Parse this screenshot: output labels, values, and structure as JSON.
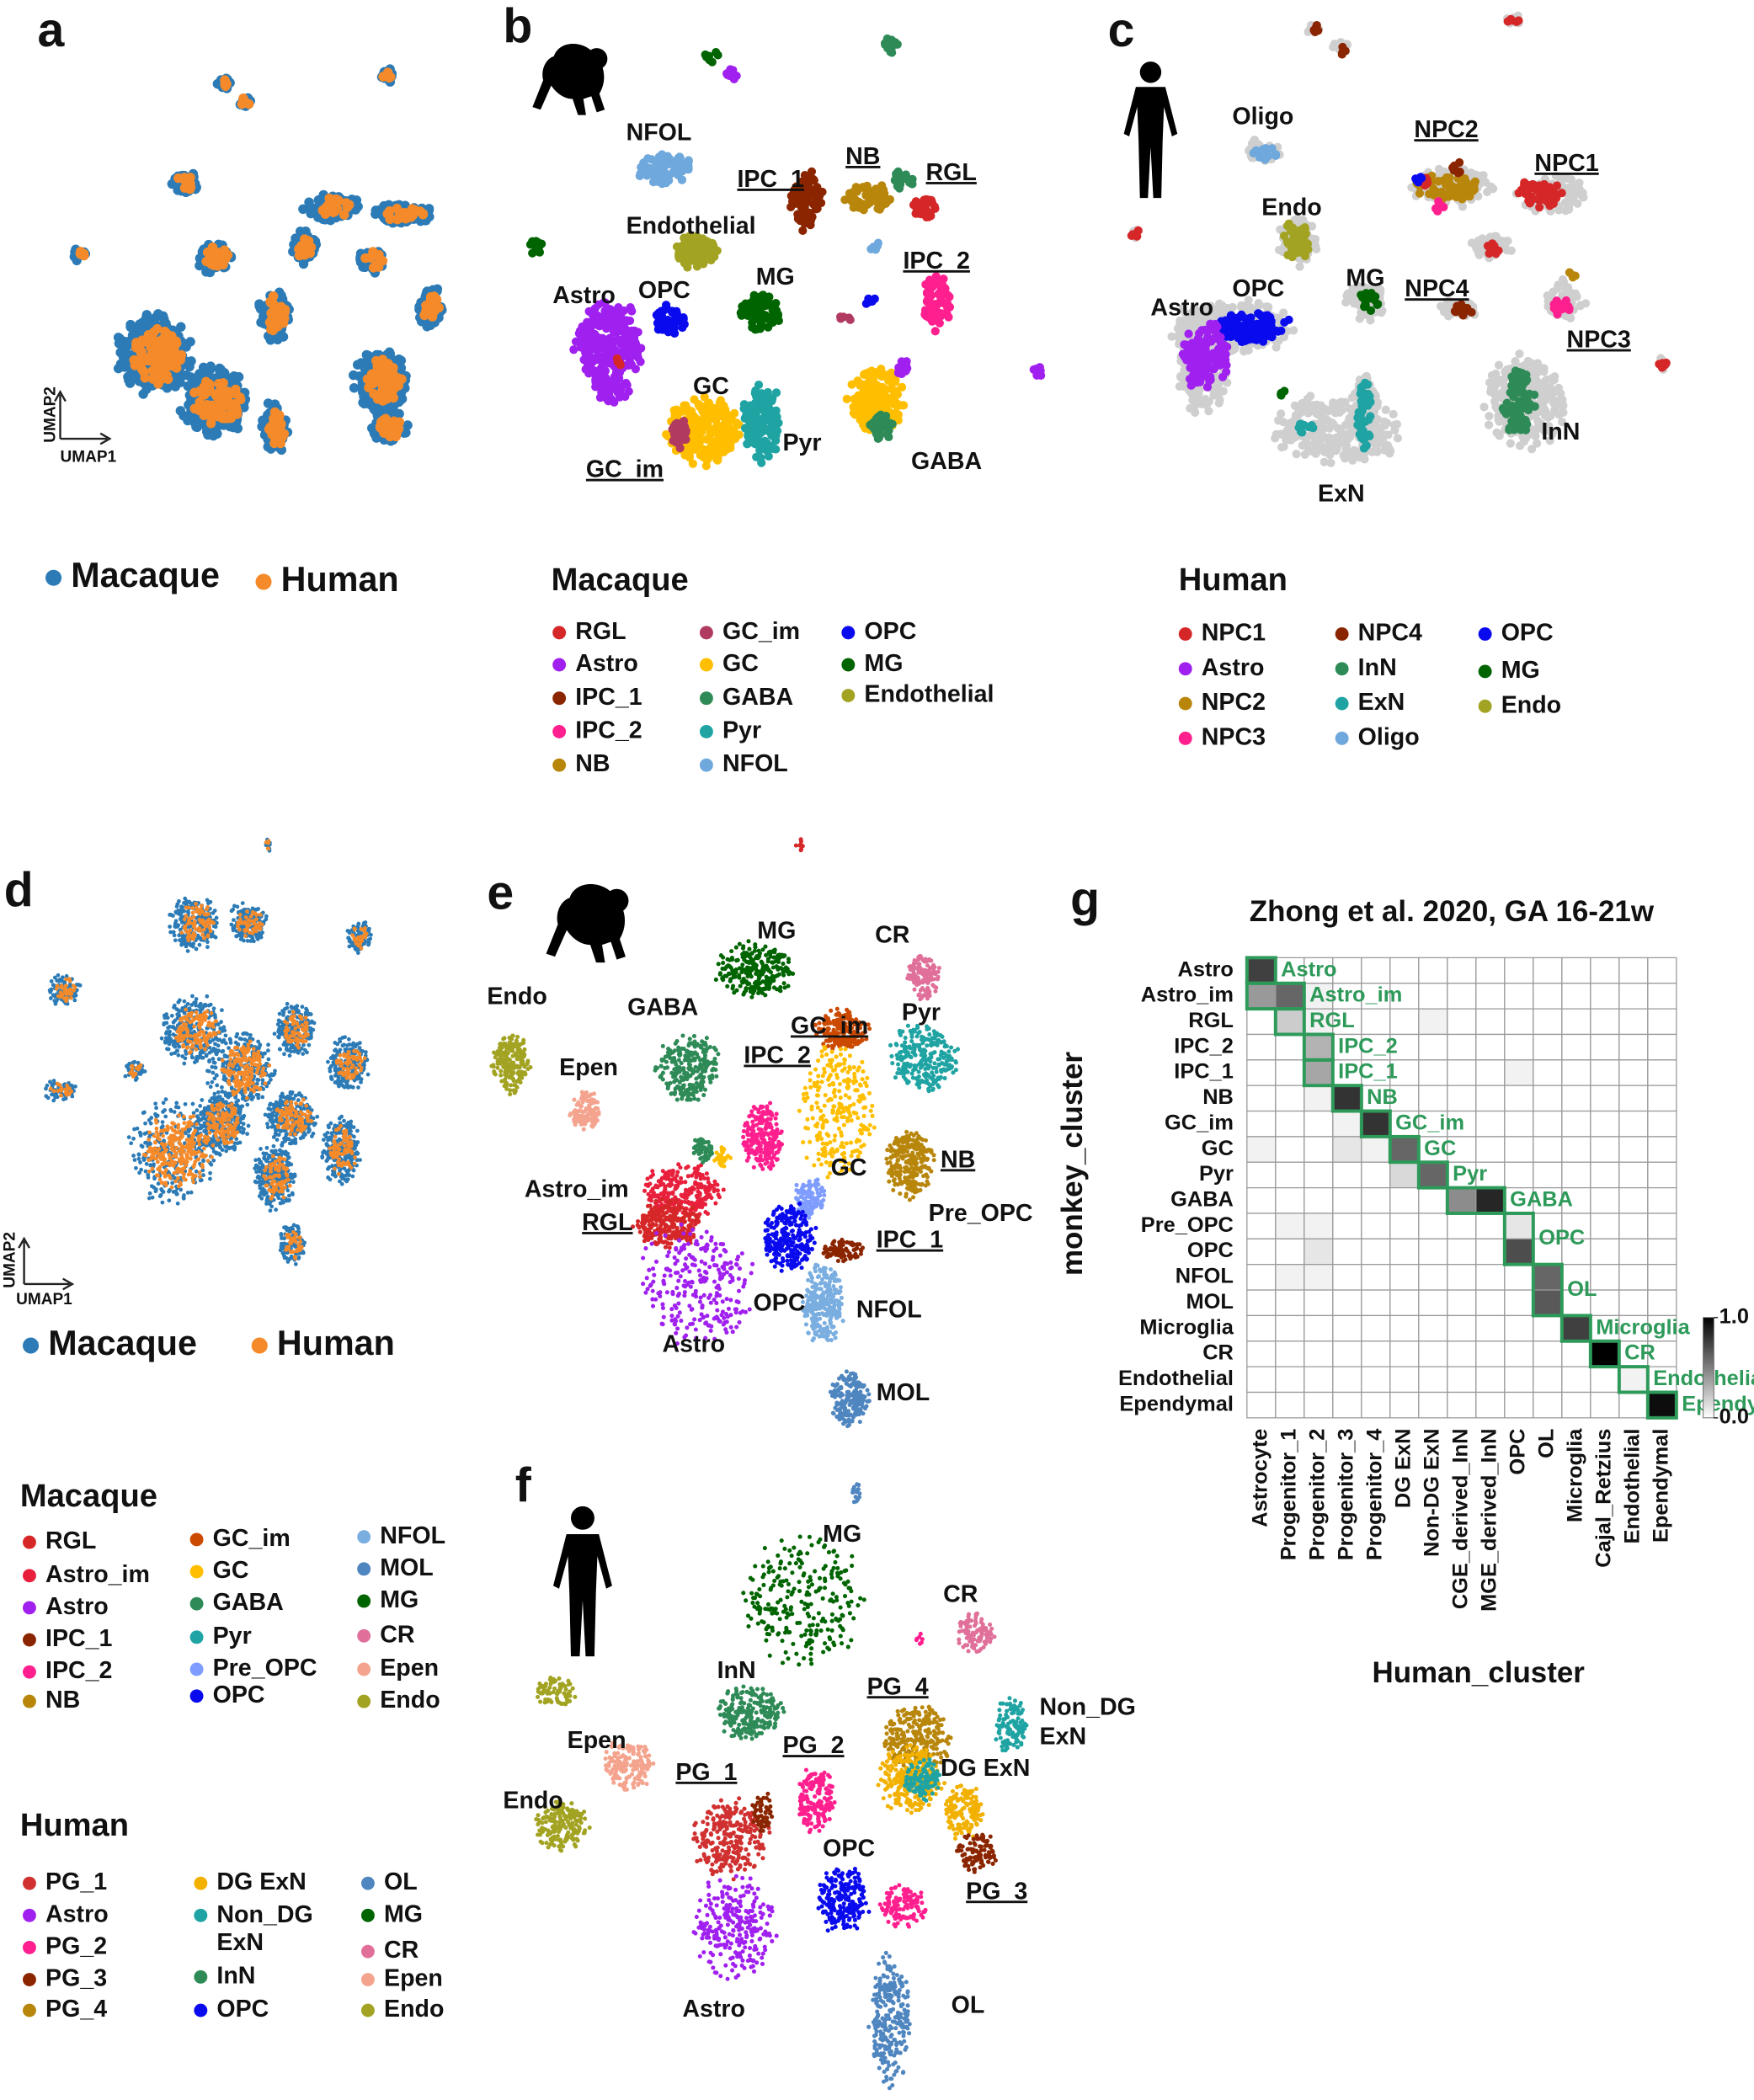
{
  "panel_a": {
    "letter": "a",
    "x_axis": "UMAP1",
    "y_axis": "UMAP2",
    "legend": [
      {
        "name": "Macaque",
        "color": "#2c7bb6"
      },
      {
        "name": "Human",
        "color": "#f58a2a"
      }
    ]
  },
  "panel_b": {
    "letter": "b",
    "legend_title": "Macaque",
    "legend": [
      {
        "name": "RGL",
        "color": "#d62728"
      },
      {
        "name": "Astro",
        "color": "#a020f0"
      },
      {
        "name": "IPC_1",
        "color": "#8b2500"
      },
      {
        "name": "IPC_2",
        "color": "#ff1f8e"
      },
      {
        "name": "NB",
        "color": "#b8860b"
      },
      {
        "name": "GC_im",
        "color": "#b03a60"
      },
      {
        "name": "GC",
        "color": "#ffbf00"
      },
      {
        "name": "GABA",
        "color": "#2e8b57"
      },
      {
        "name": "Pyr",
        "color": "#1fa3a3"
      },
      {
        "name": "NFOL",
        "color": "#6fa8dc"
      },
      {
        "name": "OPC",
        "color": "#0a0aee"
      },
      {
        "name": "MG",
        "color": "#006400"
      },
      {
        "name": "Endothelial",
        "color": "#a3a323"
      }
    ],
    "labels": [
      "NFOL",
      "IPC_1",
      "NB",
      "RGL",
      "Endothelial",
      "IPC_2",
      "Astro",
      "OPC",
      "MG",
      "GC",
      "Pyr",
      "GC_im",
      "GABA"
    ]
  },
  "panel_c": {
    "letter": "c",
    "legend_title": "Human",
    "legend": [
      {
        "name": "NPC1",
        "color": "#d62728"
      },
      {
        "name": "Astro",
        "color": "#a020f0"
      },
      {
        "name": "NPC2",
        "color": "#b8860b"
      },
      {
        "name": "NPC3",
        "color": "#ff1f8e"
      },
      {
        "name": "NPC4",
        "color": "#8b2500"
      },
      {
        "name": "InN",
        "color": "#2e8b57"
      },
      {
        "name": "ExN",
        "color": "#1fa3a3"
      },
      {
        "name": "Oligo",
        "color": "#6fa8dc"
      },
      {
        "name": "OPC",
        "color": "#0a0aee"
      },
      {
        "name": "MG",
        "color": "#006400"
      },
      {
        "name": "Endo",
        "color": "#a3a323"
      }
    ],
    "labels": [
      "Oligo",
      "NPC2",
      "NPC1",
      "Endo",
      "MG",
      "NPC4",
      "OPC",
      "Astro",
      "NPC3",
      "InN",
      "ExN"
    ]
  },
  "panel_d": {
    "letter": "d",
    "x_axis": "UMAP1",
    "y_axis": "UMAP2",
    "legend": [
      {
        "name": "Macaque",
        "color": "#2c7bb6"
      },
      {
        "name": "Human",
        "color": "#f58a2a"
      }
    ]
  },
  "panel_e": {
    "letter": "e",
    "legend_title": "Macaque",
    "legend": [
      {
        "name": "RGL",
        "color": "#d62728"
      },
      {
        "name": "Astro_im",
        "color": "#e8203c"
      },
      {
        "name": "Astro",
        "color": "#a020f0"
      },
      {
        "name": "IPC_1",
        "color": "#8b2500"
      },
      {
        "name": "IPC_2",
        "color": "#ff1f8e"
      },
      {
        "name": "NB",
        "color": "#b8860b"
      },
      {
        "name": "GC_im",
        "color": "#cc4a00"
      },
      {
        "name": "GC",
        "color": "#ffbf00"
      },
      {
        "name": "GABA",
        "color": "#2e8b57"
      },
      {
        "name": "Pyr",
        "color": "#1fa3a3"
      },
      {
        "name": "Pre_OPC",
        "color": "#7f9cff"
      },
      {
        "name": "OPC",
        "color": "#0a0aee"
      },
      {
        "name": "NFOL",
        "color": "#7aaee0"
      },
      {
        "name": "MOL",
        "color": "#4f86c0"
      },
      {
        "name": "MG",
        "color": "#006400"
      },
      {
        "name": "CR",
        "color": "#e0709a"
      },
      {
        "name": "Epen",
        "color": "#f4a48e"
      },
      {
        "name": "Endo",
        "color": "#a3a323"
      }
    ],
    "labels": [
      "MG",
      "CR",
      "Endo",
      "GABA",
      "GC_im",
      "Pyr",
      "Epen",
      "IPC_2",
      "GC",
      "NB",
      "Astro_im",
      "RGL",
      "Pre_OPC",
      "IPC_1",
      "OPC",
      "NFOL",
      "Astro",
      "MOL"
    ]
  },
  "panel_f": {
    "letter": "f",
    "legend_title": "Human",
    "legend": [
      {
        "name": "PG_1",
        "color": "#d03030"
      },
      {
        "name": "Astro",
        "color": "#a020f0"
      },
      {
        "name": "PG_2",
        "color": "#ff1f8e"
      },
      {
        "name": "PG_3",
        "color": "#8b2500"
      },
      {
        "name": "PG_4",
        "color": "#b8860b"
      },
      {
        "name": "DG ExN",
        "color": "#f2b100"
      },
      {
        "name": "Non_DG ExN",
        "color": "#1fa3a3"
      },
      {
        "name": "InN",
        "color": "#2e8b57"
      },
      {
        "name": "OPC",
        "color": "#0a0aee"
      },
      {
        "name": "OL",
        "color": "#4f86c0"
      },
      {
        "name": "MG",
        "color": "#006400"
      },
      {
        "name": "CR",
        "color": "#e0709a"
      },
      {
        "name": "Epen",
        "color": "#f4a48e"
      },
      {
        "name": "Endo",
        "color": "#a3a323"
      }
    ],
    "labels": [
      "MG",
      "CR",
      "InN",
      "PG_4",
      "Non_DG ExN",
      "Epen",
      "PG_2",
      "DG ExN",
      "PG_1",
      "Endo",
      "OPC",
      "PG_3",
      "Astro",
      "OL"
    ]
  },
  "chart_data": {
    "type": "heatmap",
    "panel_label": "g",
    "title": "Zhong et al. 2020, GA 16-21w",
    "x_label": "Human_cluster",
    "y_label": "monkey_cluster",
    "columns": [
      "Astrocyte",
      "Progenitor_1",
      "Progenitor_2",
      "Progenitor_3",
      "Progenitor_4",
      "DG ExN",
      "Non-DG ExN",
      "CGE_derived_InN",
      "MGE_derived_InN",
      "OPC",
      "OL",
      "Microglia",
      "Cajal_Retzius",
      "Endothelial",
      "Ependymal"
    ],
    "rows": [
      "Astro",
      "Astro_im",
      "RGL",
      "IPC_2",
      "IPC_1",
      "NB",
      "GC_im",
      "GC",
      "Pyr",
      "GABA",
      "Pre_OPC",
      "OPC",
      "NFOL",
      "MOL",
      "Microglia",
      "CR",
      "Endothelial",
      "Ependymal"
    ],
    "values": [
      [
        0.75,
        0,
        0,
        0,
        0,
        0,
        0,
        0,
        0,
        0,
        0,
        0,
        0,
        0,
        0
      ],
      [
        0.4,
        0.6,
        0.05,
        0,
        0,
        0,
        0,
        0,
        0,
        0,
        0,
        0,
        0,
        0,
        0
      ],
      [
        0,
        0.2,
        0.05,
        0,
        0,
        0,
        0.05,
        0,
        0,
        0,
        0,
        0,
        0,
        0,
        0
      ],
      [
        0,
        0,
        0.3,
        0,
        0,
        0,
        0,
        0,
        0,
        0,
        0,
        0,
        0,
        0,
        0
      ],
      [
        0,
        0,
        0.35,
        0,
        0,
        0,
        0,
        0,
        0,
        0.05,
        0,
        0,
        0,
        0,
        0
      ],
      [
        0,
        0,
        0.05,
        0.8,
        0,
        0,
        0,
        0,
        0,
        0,
        0,
        0,
        0,
        0,
        0
      ],
      [
        0,
        0,
        0,
        0.05,
        0.8,
        0,
        0,
        0,
        0,
        0,
        0,
        0,
        0,
        0,
        0
      ],
      [
        0.05,
        0,
        0,
        0.1,
        0.05,
        0.6,
        0,
        0,
        0,
        0,
        0,
        0,
        0,
        0,
        0
      ],
      [
        0,
        0,
        0,
        0,
        0,
        0.15,
        0.6,
        0,
        0,
        0,
        0,
        0,
        0,
        0,
        0
      ],
      [
        0,
        0,
        0,
        0,
        0,
        0,
        0,
        0.45,
        0.85,
        0,
        0,
        0,
        0,
        0,
        0
      ],
      [
        0,
        0.05,
        0.05,
        0,
        0,
        0,
        0,
        0,
        0,
        0.1,
        0,
        0,
        0,
        0,
        0
      ],
      [
        0,
        0,
        0.1,
        0,
        0,
        0,
        0,
        0,
        0,
        0.7,
        0,
        0,
        0,
        0,
        0
      ],
      [
        0,
        0.05,
        0.05,
        0,
        0,
        0,
        0,
        0,
        0,
        0,
        0.6,
        0,
        0,
        0,
        0
      ],
      [
        0,
        0,
        0,
        0,
        0,
        0,
        0,
        0,
        0,
        0,
        0.65,
        0,
        0,
        0,
        0
      ],
      [
        0,
        0,
        0,
        0,
        0,
        0,
        0,
        0,
        0,
        0,
        0,
        0.75,
        0,
        0,
        0
      ],
      [
        0,
        0,
        0,
        0,
        0,
        0,
        0,
        0,
        0,
        0,
        0,
        0,
        1,
        0,
        0
      ],
      [
        0,
        0,
        0,
        0,
        0,
        0,
        0,
        0,
        0,
        0,
        0,
        0,
        0,
        0.05,
        0
      ],
      [
        0,
        0,
        0,
        0,
        0,
        0,
        0,
        0,
        0,
        0,
        0,
        0,
        0,
        0,
        0.95
      ]
    ],
    "box_color": "#2e9a5a",
    "boxes": [
      {
        "label": "Astro",
        "rows": [
          "Astro"
        ],
        "cols": [
          "Astrocyte"
        ]
      },
      {
        "label": "Astro_im",
        "rows": [
          "Astro_im"
        ],
        "cols": [
          "Astrocyte",
          "Progenitor_1"
        ]
      },
      {
        "label": "RGL",
        "rows": [
          "RGL"
        ],
        "cols": [
          "Progenitor_1"
        ]
      },
      {
        "label": "IPC_2",
        "rows": [
          "IPC_2"
        ],
        "cols": [
          "Progenitor_2"
        ]
      },
      {
        "label": "IPC_1",
        "rows": [
          "IPC_1"
        ],
        "cols": [
          "Progenitor_2"
        ]
      },
      {
        "label": "NB",
        "rows": [
          "NB"
        ],
        "cols": [
          "Progenitor_3"
        ]
      },
      {
        "label": "GC_im",
        "rows": [
          "GC_im"
        ],
        "cols": [
          "Progenitor_4"
        ]
      },
      {
        "label": "GC",
        "rows": [
          "GC"
        ],
        "cols": [
          "DG ExN"
        ]
      },
      {
        "label": "Pyr",
        "rows": [
          "Pyr"
        ],
        "cols": [
          "Non-DG ExN"
        ]
      },
      {
        "label": "GABA",
        "rows": [
          "GABA"
        ],
        "cols": [
          "CGE_derived_InN",
          "MGE_derived_InN"
        ]
      },
      {
        "label": "OPC",
        "rows": [
          "Pre_OPC",
          "OPC"
        ],
        "cols": [
          "OPC"
        ]
      },
      {
        "label": "OL",
        "rows": [
          "NFOL",
          "MOL"
        ],
        "cols": [
          "OL"
        ]
      },
      {
        "label": "Microglia",
        "rows": [
          "Microglia"
        ],
        "cols": [
          "Microglia"
        ]
      },
      {
        "label": "CR",
        "rows": [
          "CR"
        ],
        "cols": [
          "Cajal_Retzius"
        ]
      },
      {
        "label": "Endothelial",
        "rows": [
          "Endothelial"
        ],
        "cols": [
          "Endothelial"
        ]
      },
      {
        "label": "Ependymal",
        "rows": [
          "Ependymal"
        ],
        "cols": [
          "Ependymal"
        ]
      }
    ],
    "colorbar": {
      "lim": [
        0,
        1
      ],
      "ticks": [
        {
          "value": 0,
          "label": "0.0"
        },
        {
          "value": 1,
          "label": "1.0"
        }
      ]
    }
  }
}
